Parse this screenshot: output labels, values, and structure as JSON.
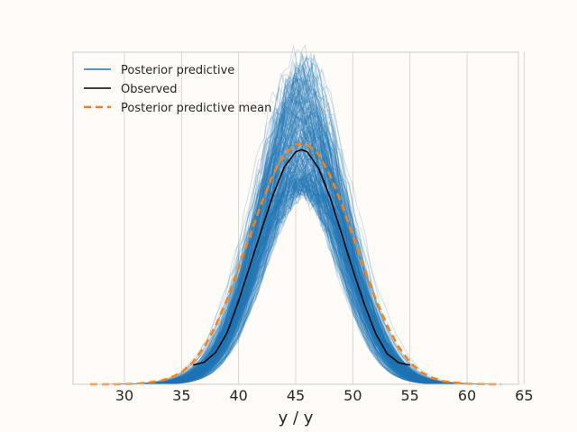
{
  "chart_data": {
    "type": "line",
    "title": "",
    "xlabel": "y / y",
    "ylabel": "",
    "xlim": [
      25.5,
      64.5
    ],
    "ylim": [
      0,
      0.078
    ],
    "xticks": [
      30,
      35,
      40,
      45,
      50,
      55,
      60,
      65
    ],
    "grid": "vertical",
    "legend_position": "top-left",
    "colors": {
      "posterior_predictive": "#1f77b4",
      "observed": "#000000",
      "mean": "#ff7f0e",
      "background": "#fffcf8",
      "grid": "#cccccc"
    },
    "legend": [
      {
        "label": "Posterior predictive",
        "style": "solid",
        "color": "#1f77b4"
      },
      {
        "label": "Observed",
        "style": "solid",
        "color": "#000000"
      },
      {
        "label": "Posterior predictive mean",
        "style": "dashed",
        "color": "#ff7f0e"
      }
    ],
    "series": [
      {
        "name": "Observed",
        "x": [
          36,
          37,
          38,
          39,
          40,
          41,
          42,
          43,
          44,
          45,
          45.5,
          46,
          47,
          48,
          49,
          50,
          51,
          52,
          53,
          54,
          55
        ],
        "y": [
          0.0045,
          0.0052,
          0.0075,
          0.0122,
          0.0196,
          0.0279,
          0.0362,
          0.0444,
          0.051,
          0.0546,
          0.0551,
          0.0546,
          0.0508,
          0.044,
          0.0355,
          0.0269,
          0.0189,
          0.0119,
          0.0072,
          0.0051,
          0.0045
        ]
      },
      {
        "name": "Posterior predictive mean",
        "x": [
          27,
          29,
          31,
          33,
          34,
          35,
          36,
          37,
          38,
          39,
          40,
          41,
          42,
          43,
          44,
          45,
          45.5,
          46,
          47,
          48,
          49,
          50,
          51,
          52,
          53,
          54,
          55,
          56,
          57,
          58,
          60,
          62,
          63
        ],
        "y": [
          0,
          0,
          0.0001,
          0.0007,
          0.0015,
          0.0028,
          0.0052,
          0.0088,
          0.0138,
          0.02,
          0.0273,
          0.0349,
          0.0425,
          0.0492,
          0.054,
          0.0563,
          0.0565,
          0.0563,
          0.054,
          0.0492,
          0.0425,
          0.0349,
          0.0273,
          0.02,
          0.0138,
          0.0088,
          0.0052,
          0.0028,
          0.0015,
          0.0007,
          0.0001,
          0,
          0
        ]
      }
    ],
    "posterior_predictive_band": {
      "center": 45.5,
      "sd_range": [
        3.4,
        4.0
      ],
      "peak_range": [
        0.046,
        0.076
      ],
      "x_range": [
        26.5,
        63.5
      ],
      "draws_shown": 300
    }
  }
}
